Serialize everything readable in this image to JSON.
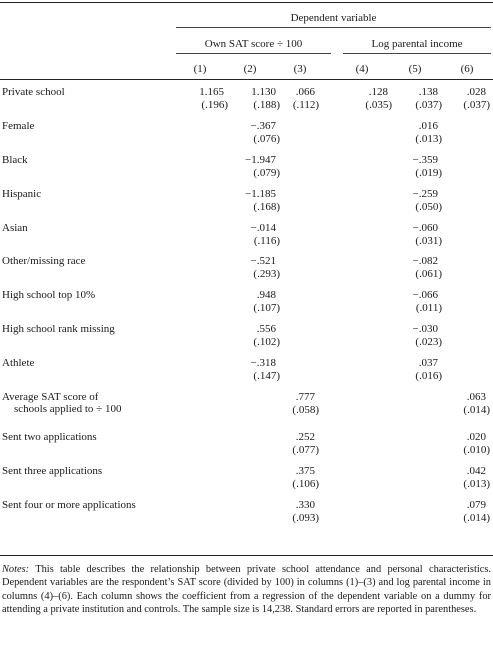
{
  "header": {
    "group_title": "Dependent variable",
    "subgroup_left": "Own SAT score ÷ 100",
    "subgroup_right": "Log parental income",
    "columns": [
      "(1)",
      "(2)",
      "(3)",
      "(4)",
      "(5)",
      "(6)"
    ]
  },
  "rows": [
    {
      "label": "Private school",
      "coef": [
        "1.165",
        "1.130",
        ".066",
        ".128",
        ".138",
        ".028"
      ],
      "se": [
        "(.196)",
        "(.188)",
        "(.112)",
        "(.035)",
        "(.037)",
        "(.037)"
      ]
    },
    {
      "label": "Female",
      "coef": [
        "",
        "−.367",
        "",
        "",
        ".016",
        ""
      ],
      "se": [
        "",
        "(.076)",
        "",
        "",
        "(.013)",
        ""
      ]
    },
    {
      "label": "Black",
      "coef": [
        "",
        "−1.947",
        "",
        "",
        "−.359",
        ""
      ],
      "se": [
        "",
        "(.079)",
        "",
        "",
        "(.019)",
        ""
      ]
    },
    {
      "label": "Hispanic",
      "coef": [
        "",
        "−1.185",
        "",
        "",
        "−.259",
        ""
      ],
      "se": [
        "",
        "(.168)",
        "",
        "",
        "(.050)",
        ""
      ]
    },
    {
      "label": "Asian",
      "coef": [
        "",
        "−.014",
        "",
        "",
        "−.060",
        ""
      ],
      "se": [
        "",
        "(.116)",
        "",
        "",
        "(.031)",
        ""
      ]
    },
    {
      "label": "Other/missing race",
      "coef": [
        "",
        "−.521",
        "",
        "",
        "−.082",
        ""
      ],
      "se": [
        "",
        "(.293)",
        "",
        "",
        "(.061)",
        ""
      ]
    },
    {
      "label": "High school top 10%",
      "coef": [
        "",
        ".948",
        "",
        "",
        "−.066",
        ""
      ],
      "se": [
        "",
        "(.107)",
        "",
        "",
        "(.011)",
        ""
      ]
    },
    {
      "label": "High school rank missing",
      "coef": [
        "",
        ".556",
        "",
        "",
        "−.030",
        ""
      ],
      "se": [
        "",
        "(.102)",
        "",
        "",
        "(.023)",
        ""
      ]
    },
    {
      "label": "Athlete",
      "coef": [
        "",
        "−.318",
        "",
        "",
        ".037",
        ""
      ],
      "se": [
        "",
        "(.147)",
        "",
        "",
        "(.016)",
        ""
      ]
    },
    {
      "label": "Average SAT score of",
      "label2": "schools applied to ÷ 100",
      "coef": [
        "",
        "",
        ".777",
        "",
        "",
        ".063"
      ],
      "se": [
        "",
        "",
        "(.058)",
        "",
        "",
        "(.014)"
      ]
    },
    {
      "label": "Sent two applications",
      "coef": [
        "",
        "",
        ".252",
        "",
        "",
        ".020"
      ],
      "se": [
        "",
        "",
        "(.077)",
        "",
        "",
        "(.010)"
      ]
    },
    {
      "label": "Sent three applications",
      "coef": [
        "",
        "",
        ".375",
        "",
        "",
        ".042"
      ],
      "se": [
        "",
        "",
        "(.106)",
        "",
        "",
        "(.013)"
      ]
    },
    {
      "label": "Sent four or more applications",
      "coef": [
        "",
        "",
        ".330",
        "",
        "",
        ".079"
      ],
      "se": [
        "",
        "",
        "(.093)",
        "",
        "",
        "(.014)"
      ]
    }
  ],
  "notes": {
    "lead": "Notes:",
    "text": " This table describes the relationship between private school attendance and personal characteristics. Dependent variables are the respondent’s SAT score (divided by 100) in columns (1)–(3) and log parental income in columns (4)–(6). Each column shows the coefficient from a regression of the dependent variable on a dummy for attending a private institution and controls. The sample size is 14,238. Standard errors are reported in parentheses."
  }
}
